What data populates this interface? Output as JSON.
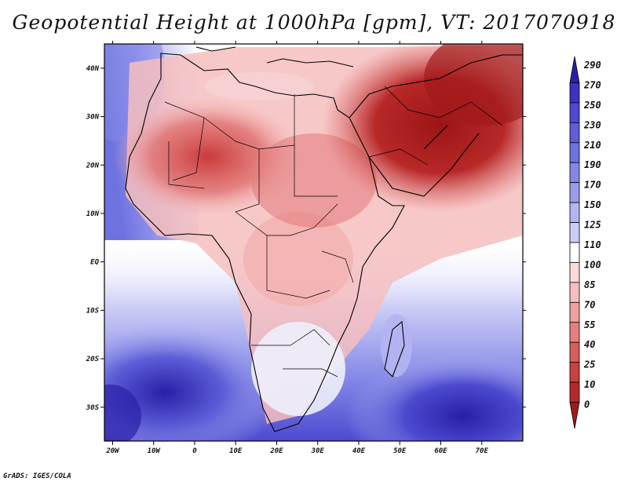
{
  "title": "Geopotential Height at 1000hPa [gpm], VT: 2017070918",
  "credit": "GrADS: IGES/COLA",
  "map": {
    "region": "Africa and Middle East",
    "variable": "Geopotential Height",
    "level": "1000hPa",
    "units": "gpm",
    "valid_time": "2017070918",
    "lon_range": [
      -22,
      80
    ],
    "lat_range": [
      -37,
      45
    ],
    "lon_ticks": [
      "20W",
      "10W",
      "0",
      "10E",
      "20E",
      "30E",
      "40E",
      "50E",
      "60E",
      "70E"
    ],
    "lat_ticks": [
      "40N",
      "30N",
      "20N",
      "10N",
      "EQ",
      "10S",
      "20S",
      "30S"
    ]
  },
  "colorbar": {
    "levels": [
      "290",
      "270",
      "250",
      "230",
      "210",
      "190",
      "170",
      "150",
      "125",
      "110",
      "100",
      "85",
      "70",
      "55",
      "40",
      "25",
      "10",
      "0"
    ],
    "colors": [
      "#2a1fa8",
      "#3a34c0",
      "#4c4ad0",
      "#5d5ed8",
      "#6e72df",
      "#8387e6",
      "#9a9ded",
      "#b3b5f2",
      "#cbcdf6",
      "#ffffff",
      "#fbdada",
      "#f6bebe",
      "#ee9f9f",
      "#e47f7f",
      "#d85e5e",
      "#c94242",
      "#b82a2a",
      "#a11a1a"
    ]
  }
}
